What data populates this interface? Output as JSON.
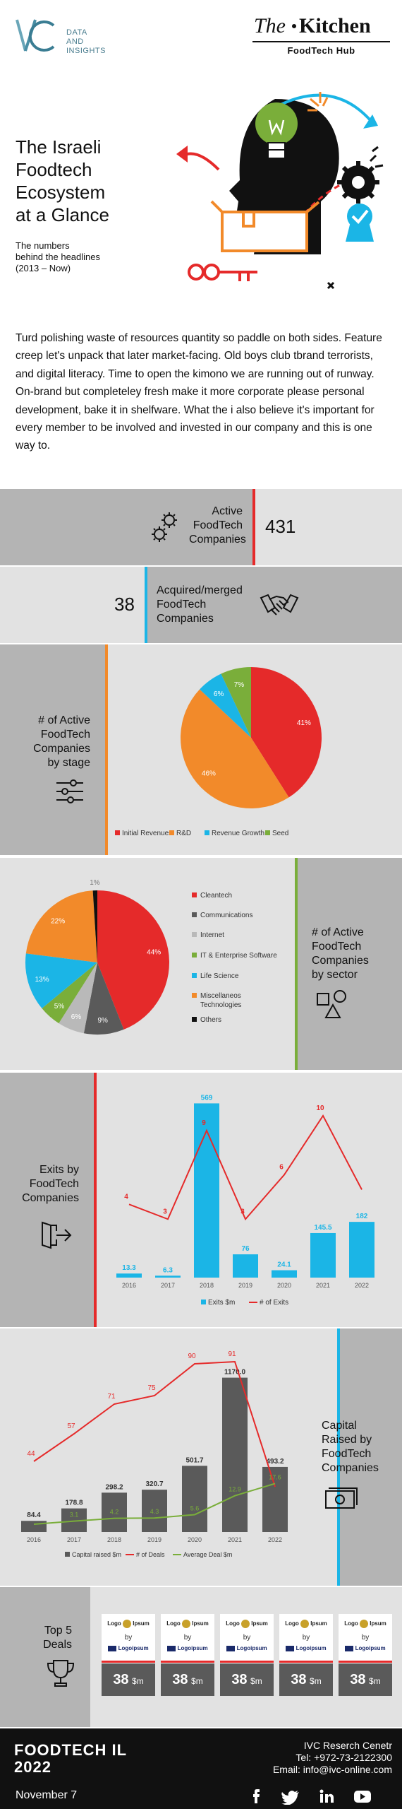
{
  "header": {
    "ivc_logo_text": "IVC",
    "ivc_line1": "DATA",
    "ivc_line2": "AND",
    "ivc_line3": "INSIGHTS",
    "kitchen_the": "The",
    "kitchen_name": "Kitchen",
    "kitchen_sub": "FoodTech Hub"
  },
  "hero": {
    "title_lines": [
      "The Israeli",
      "Foodtech",
      "Ecosystem",
      "at a Glance"
    ],
    "subtitle_lines": [
      "The numbers",
      "behind the headlines",
      "(2013 – Now)"
    ]
  },
  "intro": "Turd polishing waste of resources quantity so paddle on both sides. Feature creep let's unpack that later market-facing. Old boys club tbrand terrorists, and digital literacy. Time to open the kimono we are running out of runway. On-brand but completeley fresh make it more corporate please personal development, bake it in shelfware. What the i also believe it's important for every member to be involved and invested in our company and this is one way to.",
  "stats": {
    "active_label_lines": [
      "Active",
      "FoodTech",
      "Companies"
    ],
    "active_value": "431",
    "acquired_label_lines": [
      "Acquired/merged",
      "FoodTech",
      "Companies"
    ],
    "acquired_value": "38"
  },
  "colors": {
    "red": "#e52a2a",
    "orange": "#f28a2a",
    "blue": "#1bb5e6",
    "green": "#7aae3a",
    "grey_dark": "#5a5a5a",
    "grey_mid": "#9a9a9a",
    "panel": "#e2e2e2",
    "panel_dark": "#b4b4b4",
    "footer_bg": "#111111"
  },
  "stage_section": {
    "label_lines": [
      "# of Active",
      "FoodTech",
      "Companies",
      "by stage"
    ]
  },
  "sector_section": {
    "label_lines": [
      "# of Active",
      "FoodTech",
      "Companies",
      "by sector"
    ]
  },
  "exits_section": {
    "label_lines": [
      "Exits by",
      "FoodTech",
      "Companies"
    ]
  },
  "capital_section": {
    "label_lines": [
      "Capital",
      "Raised by",
      "FoodTech",
      "Companies"
    ]
  },
  "chart_data": [
    {
      "type": "pie",
      "name": "stage",
      "labels": [
        "Initial Revenues",
        "R&D",
        "Revenue Growth",
        "Seed"
      ],
      "values": [
        41,
        46,
        6,
        7
      ],
      "value_labels": [
        "41%",
        "46%",
        "6%",
        "7%"
      ],
      "legend_position": "bottom"
    },
    {
      "type": "pie",
      "name": "sector",
      "labels": [
        "Cleantech",
        "Communications",
        "Internet",
        "IT & Enterprise Software",
        "Life Science",
        "Miscellaneos Technologies",
        "Others"
      ],
      "values": [
        44,
        9,
        6,
        5,
        13,
        22,
        1
      ],
      "value_labels": [
        "44%",
        "9%",
        "6%",
        "5%",
        "13%",
        "22%",
        "1%"
      ],
      "legend_position": "right"
    },
    {
      "type": "bar",
      "name": "exits",
      "categories": [
        "2016",
        "2017",
        "2018",
        "2019",
        "2020",
        "2021",
        "2022"
      ],
      "series": [
        {
          "name": "Exits $m",
          "kind": "bar",
          "values": [
            13.3,
            6.3,
            569,
            76,
            24.1,
            145.5,
            182
          ],
          "value_labels": [
            "13.3",
            "6.3",
            "569",
            "76",
            "24.1",
            "145.5",
            "182"
          ]
        },
        {
          "name": "# of Exits",
          "kind": "line",
          "values": [
            4,
            3,
            9,
            3,
            6,
            10,
            5
          ],
          "value_labels": [
            "4",
            "3",
            "9",
            "3",
            "6",
            "10",
            ""
          ]
        }
      ],
      "legend_position": "bottom"
    },
    {
      "type": "bar",
      "name": "capital",
      "categories": [
        "2016",
        "2017",
        "2018",
        "2019",
        "2020",
        "2021",
        "2022"
      ],
      "series": [
        {
          "name": "Capital raised $m",
          "kind": "bar",
          "values": [
            84.4,
            178.8,
            298.2,
            320.7,
            501.7,
            1170.0,
            493.2
          ],
          "value_labels": [
            "84.4",
            "178.8",
            "298.2",
            "320.7",
            "501.7",
            "1170.0",
            "493.2"
          ]
        },
        {
          "name": "# of Deals",
          "kind": "line",
          "values": [
            44,
            57,
            71,
            75,
            90,
            91,
            32
          ],
          "value_labels": [
            "44",
            "57",
            "71",
            "75",
            "90",
            "91",
            ""
          ]
        },
        {
          "name": "Average Deal $m",
          "kind": "line",
          "values": [
            1.9,
            3.1,
            4.2,
            4.3,
            5.6,
            12.9,
            17.6
          ],
          "value_labels": [
            "",
            "3.1",
            "4.2",
            "4.3",
            "5.6",
            "12.9",
            "17.6"
          ]
        }
      ],
      "legend_position": "bottom"
    }
  ],
  "deals": {
    "label_lines": [
      "Top 5",
      "Deals"
    ],
    "logo_word": "Logo",
    "ipsum_word": "Ipsum",
    "by_word": "by",
    "logoipsum_word": "Logoipsum",
    "items": [
      {
        "amount": "38",
        "unit": "$m"
      },
      {
        "amount": "38",
        "unit": "$m"
      },
      {
        "amount": "38",
        "unit": "$m"
      },
      {
        "amount": "38",
        "unit": "$m"
      },
      {
        "amount": "38",
        "unit": "$m"
      }
    ]
  },
  "footer": {
    "brand_line1": "FOODTECH IL",
    "brand_line2": "2022",
    "date": "November 7",
    "org": "IVC Reserch Cenetr",
    "tel": "Tel: +972-73-2122300",
    "email": "Email: info@ivc-online.com"
  }
}
